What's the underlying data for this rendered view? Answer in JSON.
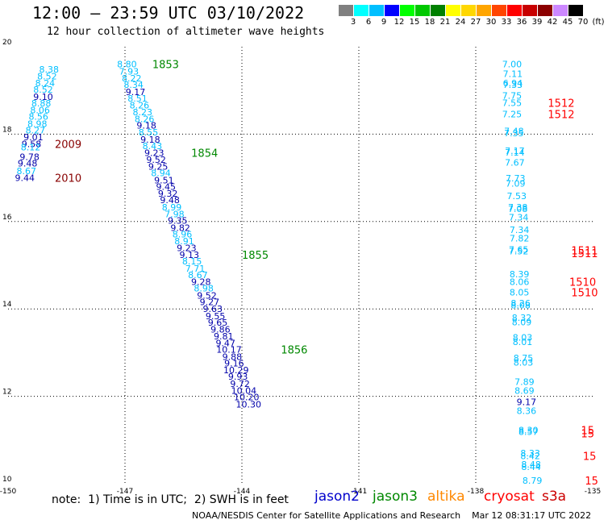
{
  "header": {
    "title": "12:00 – 23:59 UTC 03/10/2022",
    "subtitle": "12 hour collection of altimeter wave heights"
  },
  "legend": {
    "unit": "(ft)",
    "items": [
      {
        "label": "3",
        "color": "#808080"
      },
      {
        "label": "6",
        "color": "#00ffff"
      },
      {
        "label": "9",
        "color": "#00bfff"
      },
      {
        "label": "12",
        "color": "#0000ff"
      },
      {
        "label": "15",
        "color": "#00ff00"
      },
      {
        "label": "18",
        "color": "#00c800"
      },
      {
        "label": "21",
        "color": "#008000"
      },
      {
        "label": "24",
        "color": "#ffff00"
      },
      {
        "label": "27",
        "color": "#ffd700"
      },
      {
        "label": "30",
        "color": "#ffa500"
      },
      {
        "label": "33",
        "color": "#ff4500"
      },
      {
        "label": "36",
        "color": "#ff0000"
      },
      {
        "label": "39",
        "color": "#c80000"
      },
      {
        "label": "42",
        "color": "#8b0000"
      },
      {
        "label": "45",
        "color": "#cc88ff"
      },
      {
        "label": "70",
        "color": "#000000"
      }
    ]
  },
  "satellites": [
    {
      "name": "jason2",
      "color": "#0000cc"
    },
    {
      "name": "jason3",
      "color": "#008800"
    },
    {
      "name": "altika",
      "color": "#ff8800"
    },
    {
      "name": "cryosat",
      "color": "#ff0000"
    },
    {
      "name": "s3a",
      "color": "#cc0000"
    }
  ],
  "footer": {
    "note": "note:  1) Time is in UTC;  2) SWH is in feet",
    "credit": "NOAA/NESDIS Center for Satellite Applications and Research    Mar 12 08:31:17 UTC 2022"
  },
  "chart_data": {
    "type": "scatter",
    "xlim": [
      -150,
      -135
    ],
    "ylim": [
      10,
      20
    ],
    "x_ticks": [
      "-150",
      "-147",
      "-144",
      "-141",
      "-138",
      "-135"
    ],
    "y_ticks": [
      "10",
      "12",
      "14",
      "16",
      "18",
      "20"
    ],
    "grid": true,
    "points": [
      {
        "x": -148.95,
        "y": 19.48,
        "v": "8.38",
        "c": "#00bfff"
      },
      {
        "x": -149.0,
        "y": 19.33,
        "v": "8.52",
        "c": "#00bfff"
      },
      {
        "x": -149.05,
        "y": 19.17,
        "v": "8.24",
        "c": "#00bfff"
      },
      {
        "x": -149.1,
        "y": 19.02,
        "v": "8.52",
        "c": "#00bfff"
      },
      {
        "x": -149.1,
        "y": 18.86,
        "v": "9.10",
        "c": "#0000aa"
      },
      {
        "x": -149.15,
        "y": 18.71,
        "v": "8.88",
        "c": "#00bfff"
      },
      {
        "x": -149.18,
        "y": 18.55,
        "v": "8.06",
        "c": "#00bfff"
      },
      {
        "x": -149.22,
        "y": 18.4,
        "v": "8.56",
        "c": "#00bfff"
      },
      {
        "x": -149.25,
        "y": 18.24,
        "v": "8.98",
        "c": "#00bfff"
      },
      {
        "x": -149.3,
        "y": 18.09,
        "v": "8.27",
        "c": "#00bfff"
      },
      {
        "x": -149.35,
        "y": 17.93,
        "v": "9.01",
        "c": "#0000aa"
      },
      {
        "x": -149.4,
        "y": 17.78,
        "v": "9.58",
        "c": "#0000aa"
      },
      {
        "x": -149.42,
        "y": 17.7,
        "v": "8.12",
        "c": "#00bfff"
      },
      {
        "x": -149.45,
        "y": 17.48,
        "v": "9.78",
        "c": "#0000aa"
      },
      {
        "x": -149.5,
        "y": 17.33,
        "v": "9.48",
        "c": "#0000aa"
      },
      {
        "x": -149.53,
        "y": 17.16,
        "v": "8.67",
        "c": "#00bfff"
      },
      {
        "x": -149.57,
        "y": 17.0,
        "v": "9.44",
        "c": "#0000aa"
      },
      {
        "x": -146.95,
        "y": 19.6,
        "v": "8.80",
        "c": "#00bfff"
      },
      {
        "x": -146.9,
        "y": 19.44,
        "v": "7.93",
        "c": "#00bfff"
      },
      {
        "x": -146.83,
        "y": 19.28,
        "v": "8.22",
        "c": "#00bfff"
      },
      {
        "x": -146.78,
        "y": 19.13,
        "v": "8.34",
        "c": "#00bfff"
      },
      {
        "x": -146.73,
        "y": 18.97,
        "v": "9.17",
        "c": "#0000aa"
      },
      {
        "x": -146.68,
        "y": 18.82,
        "v": "8.51",
        "c": "#00bfff"
      },
      {
        "x": -146.63,
        "y": 18.66,
        "v": "8.26",
        "c": "#00bfff"
      },
      {
        "x": -146.55,
        "y": 18.51,
        "v": "8.23",
        "c": "#00bfff"
      },
      {
        "x": -146.5,
        "y": 18.35,
        "v": "8.26",
        "c": "#00bfff"
      },
      {
        "x": -146.45,
        "y": 18.2,
        "v": "9.18",
        "c": "#0000aa"
      },
      {
        "x": -146.4,
        "y": 18.04,
        "v": "8.55",
        "c": "#00bfff"
      },
      {
        "x": -146.35,
        "y": 17.88,
        "v": "9.18",
        "c": "#0000aa"
      },
      {
        "x": -146.3,
        "y": 17.73,
        "v": "8.43",
        "c": "#00bfff"
      },
      {
        "x": -146.25,
        "y": 17.57,
        "v": "9.23",
        "c": "#0000aa"
      },
      {
        "x": -146.2,
        "y": 17.42,
        "v": "9.52",
        "c": "#0000aa"
      },
      {
        "x": -146.15,
        "y": 17.26,
        "v": "9.25",
        "c": "#0000aa"
      },
      {
        "x": -146.08,
        "y": 17.11,
        "v": "8.94",
        "c": "#00bfff"
      },
      {
        "x": -146.0,
        "y": 16.95,
        "v": "9.51",
        "c": "#0000aa"
      },
      {
        "x": -145.95,
        "y": 16.8,
        "v": "9.45",
        "c": "#0000aa"
      },
      {
        "x": -145.9,
        "y": 16.64,
        "v": "9.32",
        "c": "#0000aa"
      },
      {
        "x": -145.85,
        "y": 16.49,
        "v": "9.48",
        "c": "#0000aa"
      },
      {
        "x": -145.8,
        "y": 16.33,
        "v": "8.99",
        "c": "#00bfff"
      },
      {
        "x": -145.73,
        "y": 16.17,
        "v": "7.98",
        "c": "#00bfff"
      },
      {
        "x": -145.65,
        "y": 16.02,
        "v": "9.35",
        "c": "#0000aa"
      },
      {
        "x": -145.58,
        "y": 15.86,
        "v": "9.82",
        "c": "#0000aa"
      },
      {
        "x": -145.53,
        "y": 15.71,
        "v": "8.96",
        "c": "#00bfff"
      },
      {
        "x": -145.48,
        "y": 15.55,
        "v": "8.91",
        "c": "#00bfff"
      },
      {
        "x": -145.42,
        "y": 15.4,
        "v": "9.23",
        "c": "#0000aa"
      },
      {
        "x": -145.35,
        "y": 15.24,
        "v": "9.13",
        "c": "#0000aa"
      },
      {
        "x": -145.28,
        "y": 15.09,
        "v": "8.15",
        "c": "#00bfff"
      },
      {
        "x": -145.2,
        "y": 14.93,
        "v": "7.71",
        "c": "#00bfff"
      },
      {
        "x": -145.13,
        "y": 14.78,
        "v": "8.67",
        "c": "#00bfff"
      },
      {
        "x": -145.05,
        "y": 14.62,
        "v": "9.28",
        "c": "#0000aa"
      },
      {
        "x": -144.98,
        "y": 14.47,
        "v": "8.98",
        "c": "#00bfff"
      },
      {
        "x": -144.9,
        "y": 14.31,
        "v": "9.52",
        "c": "#0000aa"
      },
      {
        "x": -144.83,
        "y": 14.16,
        "v": "9.27",
        "c": "#0000aa"
      },
      {
        "x": -144.75,
        "y": 14.0,
        "v": "9.63",
        "c": "#0000aa"
      },
      {
        "x": -144.68,
        "y": 13.84,
        "v": "9.55",
        "c": "#0000aa"
      },
      {
        "x": -144.62,
        "y": 13.69,
        "v": "9.65",
        "c": "#0000aa"
      },
      {
        "x": -144.55,
        "y": 13.53,
        "v": "9.86",
        "c": "#0000aa"
      },
      {
        "x": -144.47,
        "y": 13.38,
        "v": "9.81",
        "c": "#0000aa"
      },
      {
        "x": -144.42,
        "y": 13.22,
        "v": "9.47",
        "c": "#0000aa"
      },
      {
        "x": -144.33,
        "y": 13.07,
        "v": "10.17",
        "c": "#0000aa"
      },
      {
        "x": -144.25,
        "y": 12.91,
        "v": "9.88",
        "c": "#0000aa"
      },
      {
        "x": -144.2,
        "y": 12.76,
        "v": "9.16",
        "c": "#0000aa"
      },
      {
        "x": -144.15,
        "y": 12.6,
        "v": "10.29",
        "c": "#0000aa"
      },
      {
        "x": -144.1,
        "y": 12.45,
        "v": "9.93",
        "c": "#0000aa"
      },
      {
        "x": -144.05,
        "y": 12.29,
        "v": "9.72",
        "c": "#0000aa"
      },
      {
        "x": -143.95,
        "y": 12.13,
        "v": "10.04",
        "c": "#0000aa"
      },
      {
        "x": -143.88,
        "y": 11.98,
        "v": "10.20",
        "c": "#0000aa"
      },
      {
        "x": -143.83,
        "y": 11.82,
        "v": "10.30",
        "c": "#0000aa"
      },
      {
        "x": -137.07,
        "y": 19.6,
        "v": "7.00",
        "c": "#00bfff"
      },
      {
        "x": -137.05,
        "y": 19.38,
        "v": "7.11",
        "c": "#00bfff"
      },
      {
        "x": -137.05,
        "y": 19.17,
        "v": "6.94",
        "c": "#00bfff"
      },
      {
        "x": -137.05,
        "y": 19.13,
        "v": "7.33",
        "c": "#00bfff"
      },
      {
        "x": -137.07,
        "y": 18.88,
        "v": "7.75",
        "c": "#00bfff"
      },
      {
        "x": -137.07,
        "y": 18.72,
        "v": "7.55",
        "c": "#00bfff"
      },
      {
        "x": -137.07,
        "y": 18.46,
        "v": "7.25",
        "c": "#00bfff"
      },
      {
        "x": -137.02,
        "y": 18.07,
        "v": "7.48",
        "c": "#00bfff"
      },
      {
        "x": -137.02,
        "y": 18.03,
        "v": "7.35",
        "c": "#00bfff"
      },
      {
        "x": -137.0,
        "y": 17.62,
        "v": "7.17",
        "c": "#00bfff"
      },
      {
        "x": -137.0,
        "y": 17.58,
        "v": "7.14",
        "c": "#00bfff"
      },
      {
        "x": -137.0,
        "y": 17.35,
        "v": "7.67",
        "c": "#00bfff"
      },
      {
        "x": -136.98,
        "y": 16.99,
        "v": "7.73",
        "c": "#00bfff"
      },
      {
        "x": -136.98,
        "y": 16.87,
        "v": "7.09",
        "c": "#00bfff"
      },
      {
        "x": -136.95,
        "y": 16.59,
        "v": "7.53",
        "c": "#00bfff"
      },
      {
        "x": -136.92,
        "y": 16.33,
        "v": "7.38",
        "c": "#00bfff"
      },
      {
        "x": -136.92,
        "y": 16.29,
        "v": "7.08",
        "c": "#00bfff"
      },
      {
        "x": -136.9,
        "y": 16.1,
        "v": "7.34",
        "c": "#00bfff"
      },
      {
        "x": -136.88,
        "y": 15.81,
        "v": "7.34",
        "c": "#00bfff"
      },
      {
        "x": -136.88,
        "y": 15.62,
        "v": "7.82",
        "c": "#00bfff"
      },
      {
        "x": -136.9,
        "y": 15.36,
        "v": "7.65",
        "c": "#00bfff"
      },
      {
        "x": -136.9,
        "y": 15.32,
        "v": "7.52",
        "c": "#00bfff"
      },
      {
        "x": -136.88,
        "y": 14.8,
        "v": "8.39",
        "c": "#00bfff"
      },
      {
        "x": -136.88,
        "y": 14.62,
        "v": "8.06",
        "c": "#00bfff"
      },
      {
        "x": -136.88,
        "y": 14.38,
        "v": "8.05",
        "c": "#00bfff"
      },
      {
        "x": -136.85,
        "y": 14.13,
        "v": "8.26",
        "c": "#00bfff"
      },
      {
        "x": -136.85,
        "y": 14.09,
        "v": "8.08",
        "c": "#00bfff"
      },
      {
        "x": -136.82,
        "y": 13.8,
        "v": "8.32",
        "c": "#00bfff"
      },
      {
        "x": -136.82,
        "y": 13.7,
        "v": "8.09",
        "c": "#00bfff"
      },
      {
        "x": -136.8,
        "y": 13.35,
        "v": "8.03",
        "c": "#00bfff"
      },
      {
        "x": -136.8,
        "y": 13.25,
        "v": "8.01",
        "c": "#00bfff"
      },
      {
        "x": -136.78,
        "y": 12.88,
        "v": "8.75",
        "c": "#00bfff"
      },
      {
        "x": -136.78,
        "y": 12.78,
        "v": "8.03",
        "c": "#00bfff"
      },
      {
        "x": -136.75,
        "y": 12.33,
        "v": "7.89",
        "c": "#00bfff"
      },
      {
        "x": -136.75,
        "y": 12.13,
        "v": "8.69",
        "c": "#00bfff"
      },
      {
        "x": -136.7,
        "y": 11.87,
        "v": "9.17",
        "c": "#0000aa"
      },
      {
        "x": -136.7,
        "y": 11.67,
        "v": "8.36",
        "c": "#00bfff"
      },
      {
        "x": -136.65,
        "y": 11.23,
        "v": "8.30",
        "c": "#00bfff"
      },
      {
        "x": -136.65,
        "y": 11.19,
        "v": "8.57",
        "c": "#00bfff"
      },
      {
        "x": -136.6,
        "y": 10.7,
        "v": "8.33",
        "c": "#00bfff"
      },
      {
        "x": -136.6,
        "y": 10.64,
        "v": "8.42",
        "c": "#00bfff"
      },
      {
        "x": -136.58,
        "y": 10.44,
        "v": "8.48",
        "c": "#00bfff"
      },
      {
        "x": -136.58,
        "y": 10.39,
        "v": "8.44",
        "c": "#00bfff"
      },
      {
        "x": -136.55,
        "y": 10.07,
        "v": "8.79",
        "c": "#00bfff"
      }
    ],
    "time_labels": [
      {
        "x": -146.3,
        "y": 19.6,
        "v": "1853",
        "c": "#008800"
      },
      {
        "x": -145.3,
        "y": 17.57,
        "v": "1854",
        "c": "#008800"
      },
      {
        "x": -144.0,
        "y": 15.24,
        "v": "1855",
        "c": "#008800"
      },
      {
        "x": -143.0,
        "y": 13.07,
        "v": "1856",
        "c": "#008800"
      },
      {
        "x": -148.8,
        "y": 17.78,
        "v": "2009",
        "c": "#880000"
      },
      {
        "x": -148.8,
        "y": 17.0,
        "v": "2010",
        "c": "#880000"
      },
      {
        "x": -136.15,
        "y": 18.72,
        "v": "1512",
        "c": "#ff0000"
      },
      {
        "x": -136.15,
        "y": 18.46,
        "v": "1512",
        "c": "#ff0000"
      },
      {
        "x": -135.55,
        "y": 15.34,
        "v": "1511",
        "c": "#ff0000"
      },
      {
        "x": -135.55,
        "y": 15.28,
        "v": "1511",
        "c": "#ff0000"
      },
      {
        "x": -135.6,
        "y": 14.62,
        "v": "1510",
        "c": "#ff0000"
      },
      {
        "x": -135.55,
        "y": 14.38,
        "v": "1510",
        "c": "#ff0000"
      },
      {
        "x": -135.3,
        "y": 11.23,
        "v": "15",
        "c": "#ff0000"
      },
      {
        "x": -135.3,
        "y": 11.15,
        "v": "15",
        "c": "#ff0000"
      },
      {
        "x": -135.25,
        "y": 10.64,
        "v": "15",
        "c": "#ff0000"
      },
      {
        "x": -135.2,
        "y": 10.07,
        "v": "15",
        "c": "#ff0000"
      }
    ]
  }
}
